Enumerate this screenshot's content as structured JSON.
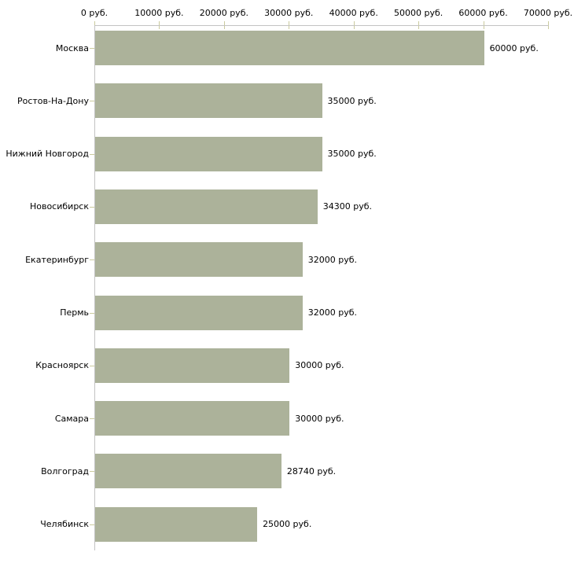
{
  "chart_data": {
    "type": "bar",
    "orientation": "horizontal",
    "categories": [
      "Москва",
      "Ростов-На-Дону",
      "Нижний Новгород",
      "Новосибирск",
      "Екатеринбург",
      "Пермь",
      "Красноярск",
      "Самара",
      "Волгоград",
      "Челябинск"
    ],
    "values": [
      60000,
      35000,
      35000,
      34300,
      32000,
      32000,
      30000,
      30000,
      28740,
      25000
    ],
    "value_labels": [
      "60000 руб.",
      "35000 руб.",
      "35000 руб.",
      "34300 руб.",
      "32000 руб.",
      "32000 руб.",
      "30000 руб.",
      "30000 руб.",
      "28740 руб.",
      "25000 руб."
    ],
    "x_axis": {
      "position": "top",
      "min": 0,
      "max": 70000,
      "ticks": [
        0,
        10000,
        20000,
        30000,
        40000,
        50000,
        60000,
        70000
      ],
      "tick_labels": [
        "0 руб.",
        "10000 руб.",
        "20000 руб.",
        "30000 руб.",
        "40000 руб.",
        "50000 руб.",
        "60000 руб.",
        "70000 руб."
      ]
    },
    "unit": "руб.",
    "legend": "none",
    "grid": "off",
    "colors": {
      "bar": "#acb29a",
      "axis_line": "#c3c3c3",
      "tick": "#cbcb9e",
      "text": "#000000",
      "background": "#ffffff"
    }
  }
}
